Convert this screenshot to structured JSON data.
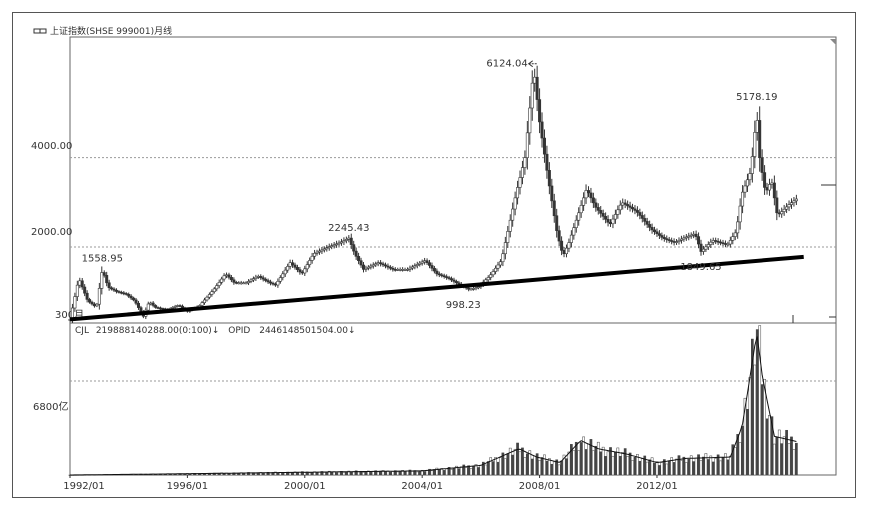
{
  "chart_data": {
    "type": "candlestick",
    "title": "上证指数(SHSE 999001)月线",
    "price_panel": {
      "y_tick_labels": [
        "4000.00",
        "2000.00"
      ],
      "y_ticks": [
        4000,
        2000
      ],
      "ylim": [
        300,
        6700
      ],
      "corner_label": "300月",
      "annotations": [
        {
          "label": "1558.95",
          "date": 1993.1,
          "value": 1558.95
        },
        {
          "label": "2245.43",
          "date": 2001.5,
          "value": 2245.43
        },
        {
          "label": "998.23",
          "date": 2005.4,
          "value": 998.23
        },
        {
          "label": "6124.04",
          "date": 2007.8,
          "value": 6124.04,
          "arrow": true
        },
        {
          "label": "1849.65",
          "date": 2013.5,
          "value": 1849.65
        },
        {
          "label": "5178.19",
          "date": 2015.4,
          "value": 5178.19
        }
      ],
      "trendline": {
        "from": {
          "date": 1992.0,
          "value": 380
        },
        "to": {
          "date": 2017.0,
          "value": 1780
        }
      },
      "series": [
        [
          1992.0,
          380
        ],
        [
          1992.3,
          1300
        ],
        [
          1992.6,
          800
        ],
        [
          1992.9,
          650
        ],
        [
          1993.1,
          1500
        ],
        [
          1993.3,
          1100
        ],
        [
          1993.6,
          1000
        ],
        [
          1993.9,
          950
        ],
        [
          1994.2,
          800
        ],
        [
          1994.5,
          450
        ],
        [
          1994.7,
          780
        ],
        [
          1994.9,
          650
        ],
        [
          1995.3,
          600
        ],
        [
          1995.7,
          700
        ],
        [
          1996.0,
          560
        ],
        [
          1996.4,
          680
        ],
        [
          1996.9,
          1050
        ],
        [
          1997.3,
          1400
        ],
        [
          1997.6,
          1200
        ],
        [
          1998.0,
          1200
        ],
        [
          1998.4,
          1350
        ],
        [
          1998.8,
          1200
        ],
        [
          1999.0,
          1150
        ],
        [
          1999.5,
          1650
        ],
        [
          1999.9,
          1400
        ],
        [
          2000.3,
          1850
        ],
        [
          2000.8,
          2000
        ],
        [
          2001.2,
          2100
        ],
        [
          2001.5,
          2200
        ],
        [
          2001.7,
          1850
        ],
        [
          2002.0,
          1500
        ],
        [
          2002.5,
          1650
        ],
        [
          2003.0,
          1500
        ],
        [
          2003.5,
          1500
        ],
        [
          2004.1,
          1700
        ],
        [
          2004.5,
          1400
        ],
        [
          2004.9,
          1300
        ],
        [
          2005.3,
          1150
        ],
        [
          2005.6,
          1050
        ],
        [
          2005.9,
          1100
        ],
        [
          2006.3,
          1350
        ],
        [
          2006.7,
          1700
        ],
        [
          2006.9,
          2300
        ],
        [
          2007.2,
          3200
        ],
        [
          2007.5,
          4000
        ],
        [
          2007.8,
          6000
        ],
        [
          2008.0,
          4800
        ],
        [
          2008.3,
          3500
        ],
        [
          2008.6,
          2300
        ],
        [
          2008.8,
          1800
        ],
        [
          2009.0,
          2100
        ],
        [
          2009.4,
          2900
        ],
        [
          2009.6,
          3300
        ],
        [
          2009.9,
          2900
        ],
        [
          2010.4,
          2500
        ],
        [
          2010.8,
          3000
        ],
        [
          2011.3,
          2800
        ],
        [
          2011.8,
          2400
        ],
        [
          2012.2,
          2200
        ],
        [
          2012.6,
          2100
        ],
        [
          2012.9,
          2200
        ],
        [
          2013.3,
          2300
        ],
        [
          2013.5,
          1900
        ],
        [
          2013.9,
          2150
        ],
        [
          2014.4,
          2050
        ],
        [
          2014.7,
          2350
        ],
        [
          2014.9,
          3200
        ],
        [
          2015.2,
          3700
        ],
        [
          2015.4,
          5000
        ],
        [
          2015.5,
          4000
        ],
        [
          2015.7,
          3200
        ],
        [
          2015.9,
          3500
        ],
        [
          2016.1,
          2700
        ],
        [
          2016.5,
          2950
        ],
        [
          2016.8,
          3100
        ]
      ]
    },
    "volume_panel": {
      "legend": [
        {
          "name": "CJL",
          "value": "219888140288.00(0:100)↓"
        },
        {
          "name": "OPID",
          "value": "2446148501504.00↓"
        }
      ],
      "y_tick_labels": [
        "6800亿"
      ],
      "y_ticks": [
        6800
      ],
      "ylim": [
        0,
        11000
      ],
      "series": [
        [
          1992.0,
          0
        ],
        [
          1995.5,
          80
        ],
        [
          2000.0,
          200
        ],
        [
          2004.0,
          300
        ],
        [
          2006.0,
          700
        ],
        [
          2007.3,
          1900
        ],
        [
          2007.9,
          1300
        ],
        [
          2008.7,
          900
        ],
        [
          2009.4,
          2500
        ],
        [
          2010.0,
          1900
        ],
        [
          2011.0,
          1500
        ],
        [
          2012.0,
          900
        ],
        [
          2013.0,
          1200
        ],
        [
          2014.5,
          1300
        ],
        [
          2014.9,
          3500
        ],
        [
          2015.2,
          7500
        ],
        [
          2015.4,
          10300
        ],
        [
          2015.6,
          7000
        ],
        [
          2016.0,
          2800
        ],
        [
          2016.8,
          2400
        ]
      ]
    },
    "x_tick_labels": [
      "1992/01",
      "1996/01",
      "2000/01",
      "2004/01",
      "2008/01",
      "2012/01"
    ],
    "x_ticks": [
      1992,
      1996,
      2000,
      2004,
      2008,
      2012
    ],
    "xlim": [
      1992,
      2018.1
    ],
    "grid": true
  }
}
